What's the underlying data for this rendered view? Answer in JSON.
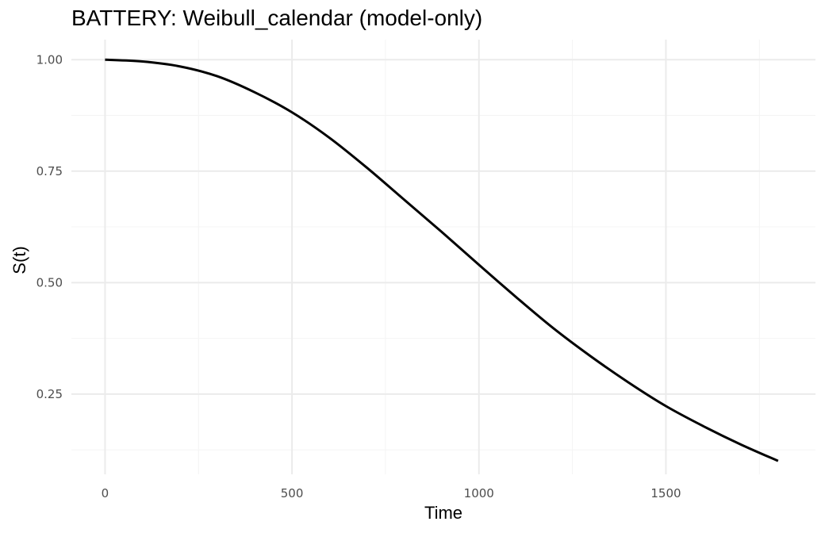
{
  "chart_data": {
    "type": "line",
    "title": "BATTERY: Weibull_calendar (model-only)",
    "xlabel": "Time",
    "ylabel": "S(t)",
    "xlim": [
      -90,
      1900
    ],
    "ylim": [
      0.07,
      1.045
    ],
    "x_ticks": [
      0,
      500,
      1000,
      1500
    ],
    "x_tick_labels": [
      "0",
      "500",
      "1000",
      "1500"
    ],
    "x_minor_ticks": [
      250,
      750,
      1250,
      1750
    ],
    "y_ticks": [
      0.25,
      0.5,
      0.75,
      1.0
    ],
    "y_tick_labels": [
      "0.25",
      "0.50",
      "0.75",
      "1.00"
    ],
    "y_minor_ticks": [
      0.125,
      0.375,
      0.625,
      0.875
    ],
    "grid": true,
    "legend": "none",
    "series": [
      {
        "color": "#000000",
        "x": [
          0,
          100,
          200,
          300,
          400,
          500,
          600,
          700,
          800,
          900,
          1000,
          1100,
          1200,
          1300,
          1400,
          1500,
          1600,
          1700,
          1800
        ],
        "y": [
          1.0,
          0.996,
          0.985,
          0.963,
          0.927,
          0.882,
          0.825,
          0.758,
          0.686,
          0.614,
          0.54,
          0.467,
          0.397,
          0.334,
          0.276,
          0.223,
          0.178,
          0.137,
          0.1
        ]
      }
    ]
  }
}
